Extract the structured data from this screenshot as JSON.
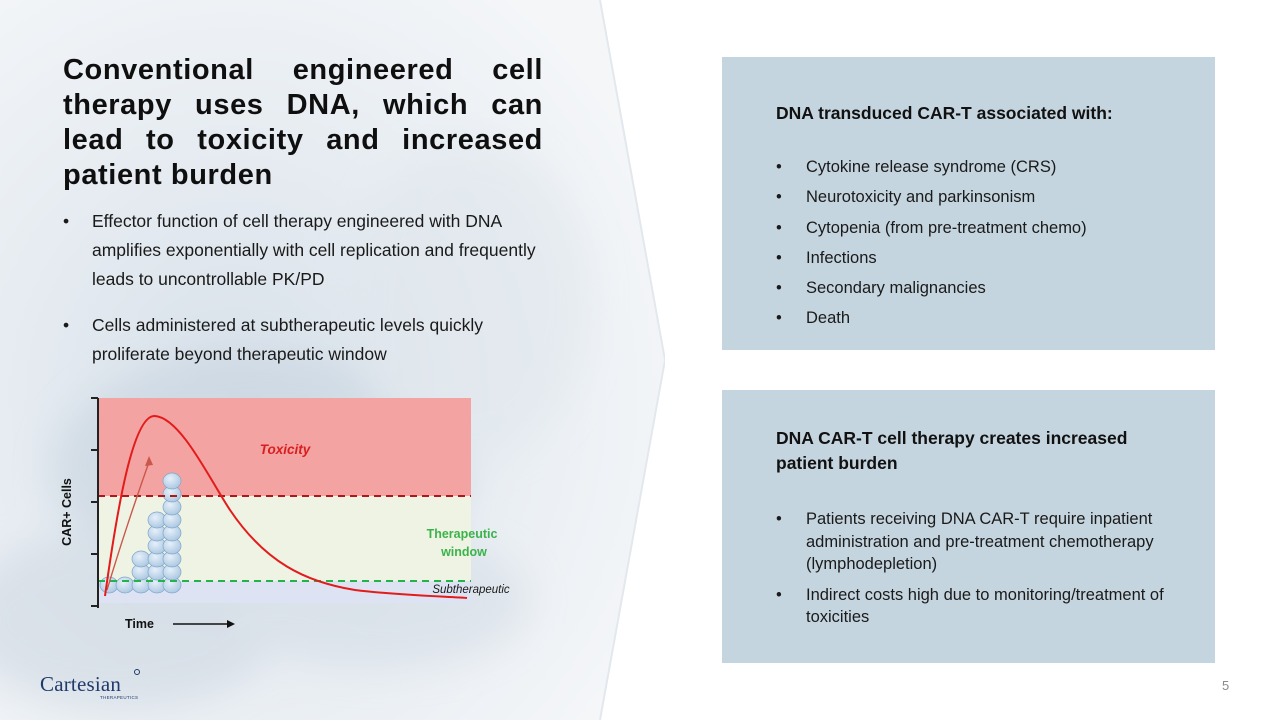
{
  "slide": {
    "title": "Conventional engineered cell therapy uses DNA, which can lead to toxicity and increased patient burden",
    "bullets": [
      "Effector function of cell therapy engineered with DNA amplifies exponentially with cell replication and frequently leads to uncontrollable PK/PD",
      "Cells administered at subtherapeutic levels quickly proliferate beyond therapeutic window"
    ],
    "page_number": "5"
  },
  "panel_toxicity": {
    "heading": "DNA transduced CAR-T associated with:",
    "items": [
      "Cytokine release syndrome (CRS)",
      "Neurotoxicity and parkinsonism",
      "Cytopenia (from pre-treatment chemo)",
      "Infections",
      "Secondary malignancies",
      "Death"
    ]
  },
  "panel_burden": {
    "heading": "DNA CAR-T cell therapy creates increased patient burden",
    "items": [
      "Patients receiving DNA CAR-T require inpatient administration and pre-treatment chemotherapy (lymphodepletion)",
      "Indirect costs high due to monitoring/treatment of toxicities"
    ]
  },
  "chart_data": {
    "type": "area",
    "xlabel": "Time",
    "ylabel": "CAR+ Cells",
    "zones": [
      {
        "label": "Toxicity",
        "color": "#f4a3a3"
      },
      {
        "label": "Therapeutic window",
        "color": "#eef3e3"
      },
      {
        "label": "Subtherapeutic",
        "color": "#dde3f3"
      }
    ],
    "colors": {
      "curve": "#e31b1b",
      "toxicity_line": "#b01818",
      "therapeutic_line": "#22b34a",
      "toxicity_label": "#d81f1f",
      "therapeutic_label": "#3cb34a",
      "cells": "#a9c6e0"
    }
  },
  "logo": {
    "name": "Cartesian",
    "subtitle": "THERAPEUTICS"
  }
}
